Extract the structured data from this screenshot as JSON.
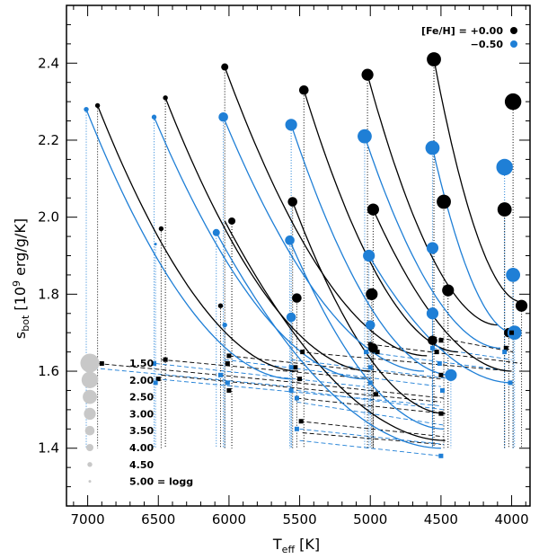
{
  "chart_data": {
    "type": "scatter",
    "title": "",
    "xlabel_main": "T",
    "xlabel_sub": "eff",
    "xlabel_unit": "[K]",
    "ylabel_main": "s",
    "ylabel_sub": "bot",
    "ylabel_unit": "[10",
    "ylabel_exp": "9",
    "ylabel_rest": "erg/g/K]",
    "xlim": [
      7150,
      3870
    ],
    "ylim": [
      1.25,
      2.55
    ],
    "x_ticks": [
      7000,
      6500,
      6000,
      5500,
      5000,
      4500,
      4000
    ],
    "x_tick_labels": [
      "7000",
      "6500",
      "6000",
      "5500",
      "5000",
      "4500",
      "4000"
    ],
    "y_ticks": [
      1.4,
      1.6,
      1.8,
      2.0,
      2.2,
      2.4
    ],
    "y_tick_labels": [
      "1.4",
      "1.6",
      "1.8",
      "2.0",
      "2.2",
      "2.4"
    ],
    "colors": {
      "solar": "#000000",
      "metal_poor": "#1f7fd6",
      "size_legend": "#c8c8c8"
    },
    "legend": {
      "label": "[Fe/H] = +0.00",
      "label2": "−0.50",
      "placement": "top-right"
    },
    "size_legend": {
      "entries": [
        "1.50",
        "2.00",
        "2.50",
        "3.00",
        "3.50",
        "4.00",
        "4.50",
        "5.00 = logg"
      ],
      "logg": [
        1.5,
        2.0,
        2.5,
        3.0,
        3.5,
        4.0,
        4.5,
        5.0
      ],
      "placement": "bottom-left"
    },
    "series": [
      {
        "name": "[Fe/H] = +0.00",
        "points": [
          {
            "teff": 6030,
            "logg": 4.0,
            "s": 2.39
          },
          {
            "teff": 5980,
            "logg": 4.0,
            "s": 1.99
          },
          {
            "teff": 6060,
            "logg": 4.5,
            "s": 1.77
          },
          {
            "teff": 5470,
            "logg": 3.5,
            "s": 2.33
          },
          {
            "teff": 5550,
            "logg": 3.5,
            "s": 2.04
          },
          {
            "teff": 5520,
            "logg": 3.5,
            "s": 1.79
          },
          {
            "teff": 5020,
            "logg": 3.0,
            "s": 2.37
          },
          {
            "teff": 4980,
            "logg": 3.0,
            "s": 2.02
          },
          {
            "teff": 4990,
            "logg": 3.0,
            "s": 1.8
          },
          {
            "teff": 4550,
            "logg": 2.5,
            "s": 2.41
          },
          {
            "teff": 4480,
            "logg": 2.5,
            "s": 2.04
          },
          {
            "teff": 4450,
            "logg": 3.0,
            "s": 1.81
          },
          {
            "teff": 3990,
            "logg": 2.0,
            "s": 2.3
          },
          {
            "teff": 4050,
            "logg": 2.5,
            "s": 2.02
          },
          {
            "teff": 3930,
            "logg": 3.0,
            "s": 1.77
          },
          {
            "teff": 6450,
            "logg": 4.5,
            "s": 2.31
          },
          {
            "teff": 6480,
            "logg": 4.5,
            "s": 1.97
          },
          {
            "teff": 6930,
            "logg": 4.5,
            "s": 2.29
          },
          {
            "teff": 4560,
            "logg": 3.5,
            "s": 1.68
          },
          {
            "teff": 4980,
            "logg": 3.5,
            "s": 1.66
          },
          {
            "teff": 4020,
            "logg": 3.5,
            "s": 1.7
          }
        ]
      },
      {
        "name": "[Fe/H] = −0.50",
        "points": [
          {
            "teff": 6040,
            "logg": 3.5,
            "s": 2.26
          },
          {
            "teff": 6090,
            "logg": 4.0,
            "s": 1.96
          },
          {
            "teff": 6030,
            "logg": 4.5,
            "s": 1.72
          },
          {
            "teff": 5560,
            "logg": 3.0,
            "s": 2.24
          },
          {
            "teff": 5570,
            "logg": 3.5,
            "s": 1.94
          },
          {
            "teff": 5560,
            "logg": 3.5,
            "s": 1.74
          },
          {
            "teff": 5040,
            "logg": 2.5,
            "s": 2.21
          },
          {
            "teff": 5010,
            "logg": 3.0,
            "s": 1.9
          },
          {
            "teff": 5000,
            "logg": 3.5,
            "s": 1.72
          },
          {
            "teff": 4560,
            "logg": 2.5,
            "s": 2.18
          },
          {
            "teff": 4560,
            "logg": 3.0,
            "s": 1.92
          },
          {
            "teff": 4560,
            "logg": 3.0,
            "s": 1.75
          },
          {
            "teff": 4050,
            "logg": 2.0,
            "s": 2.13
          },
          {
            "teff": 3990,
            "logg": 2.5,
            "s": 1.85
          },
          {
            "teff": 3980,
            "logg": 2.5,
            "s": 1.7
          },
          {
            "teff": 6530,
            "logg": 4.5,
            "s": 2.26
          },
          {
            "teff": 6520,
            "logg": 5.0,
            "s": 1.93
          },
          {
            "teff": 7010,
            "logg": 4.5,
            "s": 2.28
          },
          {
            "teff": 4430,
            "logg": 3.0,
            "s": 1.59
          }
        ]
      }
    ],
    "annotations": []
  }
}
